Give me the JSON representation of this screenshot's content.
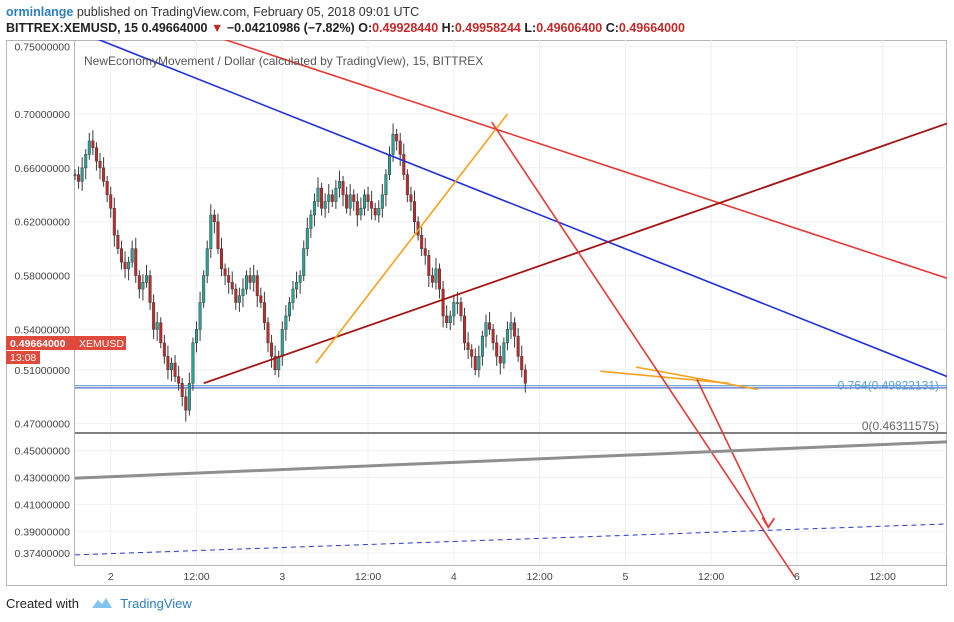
{
  "header": {
    "username": "orminlange",
    "published_text": "published on TradingView.com, February 05, 2018 09:01 UTC",
    "symbol": "BITTREX:XEMUSD, 15",
    "last": "0.49664000",
    "change_arrow": "▼",
    "change": "−0.04210986 (−7.82%)",
    "ohlc": [
      {
        "k": "O:",
        "v": "0.49928440"
      },
      {
        "k": "H:",
        "v": "0.49958244"
      },
      {
        "k": "L:",
        "v": "0.49606400"
      },
      {
        "k": "C:",
        "v": "0.49664000"
      }
    ]
  },
  "footer": {
    "created_with": "Created with",
    "brand": "TradingView"
  },
  "chart_data": {
    "type": "candlestick",
    "title": "NewEconomyMovement / Dollar (calculated by TradingView), 15, BITTREX",
    "ylim": [
      0.365,
      0.755
    ],
    "y_ticks": [
      "0.75000000",
      "0.70000000",
      "0.66000000",
      "0.62000000",
      "0.58000000",
      "0.54000000",
      "0.51000000",
      "0.47000000",
      "0.45000000",
      "0.43000000",
      "0.41000000",
      "0.39000000",
      "0.37400000"
    ],
    "y_tick_values": [
      0.75,
      0.7,
      0.66,
      0.62,
      0.58,
      0.54,
      0.51,
      0.47,
      0.45,
      0.43,
      0.41,
      0.39,
      0.374
    ],
    "x_ticks": [
      "2",
      "12:00",
      "3",
      "12:00",
      "4",
      "12:00",
      "5",
      "12:00",
      "6",
      "12:00"
    ],
    "x_tick_hours": [
      24,
      36,
      48,
      60,
      72,
      84,
      96,
      108,
      120,
      132
    ],
    "x_range_hours": [
      19,
      141
    ],
    "price_label": {
      "value": "0.49664000",
      "symbol": "XEMUSD",
      "countdown": "13:08"
    },
    "fib_labels": [
      {
        "text": "0.764(0.49822131)",
        "price": 0.4982
      },
      {
        "text": "0(0.46311575)",
        "price": 0.4631
      }
    ],
    "ohlc_series": {
      "start_hour": 19,
      "interval_hours": 0.5,
      "colors": {
        "up": "#26a69a",
        "down": "#c62828"
      },
      "closes": [
        0.655,
        0.65,
        0.66,
        0.67,
        0.68,
        0.675,
        0.665,
        0.66,
        0.65,
        0.64,
        0.63,
        0.61,
        0.6,
        0.59,
        0.585,
        0.59,
        0.6,
        0.58,
        0.57,
        0.575,
        0.58,
        0.56,
        0.54,
        0.545,
        0.53,
        0.52,
        0.51,
        0.515,
        0.505,
        0.5,
        0.49,
        0.48,
        0.5,
        0.53,
        0.54,
        0.56,
        0.58,
        0.6,
        0.625,
        0.62,
        0.6,
        0.585,
        0.58,
        0.575,
        0.57,
        0.56,
        0.565,
        0.57,
        0.58,
        0.575,
        0.58,
        0.565,
        0.56,
        0.545,
        0.53,
        0.52,
        0.51,
        0.52,
        0.54,
        0.55,
        0.56,
        0.57,
        0.575,
        0.58,
        0.6,
        0.615,
        0.625,
        0.635,
        0.645,
        0.63,
        0.635,
        0.64,
        0.635,
        0.645,
        0.65,
        0.64,
        0.63,
        0.64,
        0.635,
        0.625,
        0.63,
        0.64,
        0.635,
        0.63,
        0.625,
        0.63,
        0.64,
        0.655,
        0.67,
        0.685,
        0.68,
        0.67,
        0.655,
        0.64,
        0.635,
        0.62,
        0.61,
        0.6,
        0.595,
        0.58,
        0.575,
        0.585,
        0.57,
        0.55,
        0.545,
        0.55,
        0.56,
        0.56,
        0.55,
        0.53,
        0.525,
        0.52,
        0.51,
        0.52,
        0.535,
        0.545,
        0.54,
        0.53,
        0.52,
        0.515,
        0.53,
        0.54,
        0.545,
        0.535,
        0.52,
        0.51,
        0.5
      ]
    },
    "lines": [
      {
        "name": "blue downtrend",
        "color": "#1f2fd8",
        "width": 1.6,
        "dash": false,
        "p1": [
          21.5,
          0.757
        ],
        "p2": [
          141,
          0.505
        ]
      },
      {
        "name": "red upper downtrend",
        "color": "#e53935",
        "width": 1.6,
        "dash": false,
        "p1": [
          39,
          0.757
        ],
        "p2": [
          141,
          0.578
        ]
      },
      {
        "name": "dark red uptrend",
        "color": "#a31515",
        "width": 1.8,
        "dash": false,
        "p1": [
          37,
          0.5
        ],
        "p2": [
          141,
          0.693
        ]
      },
      {
        "name": "orange uptrend",
        "color": "#f7a21b",
        "width": 1.6,
        "dash": false,
        "p1": [
          52.7,
          0.515
        ],
        "p2": [
          79.5,
          0.7
        ]
      },
      {
        "name": "orange wedge 1",
        "color": "#f7a21b",
        "width": 1.6,
        "dash": false,
        "p1": [
          92.5,
          0.509
        ],
        "p2": [
          110.5,
          0.5
        ]
      },
      {
        "name": "orange wedge 2",
        "color": "#f7a21b",
        "width": 1.6,
        "dash": false,
        "p1": [
          97.5,
          0.512
        ],
        "p2": [
          114.5,
          0.4955
        ]
      },
      {
        "name": "red projection 1",
        "color": "#e53935",
        "width": 1.6,
        "dash": false,
        "p1": [
          77.3,
          0.694
        ],
        "p2": [
          119.7,
          0.356
        ]
      },
      {
        "name": "red projection 2",
        "color": "#e53935",
        "width": 1.6,
        "dash": false,
        "p1": [
          106,
          0.503
        ],
        "p2": [
          116,
          0.393
        ]
      },
      {
        "name": "gray support",
        "color": "#8f8f8f",
        "width": 3,
        "dash": false,
        "p1": [
          19,
          0.4295
        ],
        "p2": [
          141,
          0.4565
        ]
      },
      {
        "name": "dashed support",
        "color": "#2b37c8",
        "width": 1,
        "dash": true,
        "p1": [
          19,
          0.3725
        ],
        "p2": [
          141,
          0.3955
        ]
      }
    ],
    "levels": [
      {
        "name": "fib 0.764",
        "color": "#5ba0d0",
        "price": 0.4982
      },
      {
        "name": "fib 0",
        "color": "#7f7f7f",
        "price": 0.4631
      },
      {
        "name": "last price",
        "color": "#5a6bd1",
        "price": 0.4966
      }
    ]
  }
}
